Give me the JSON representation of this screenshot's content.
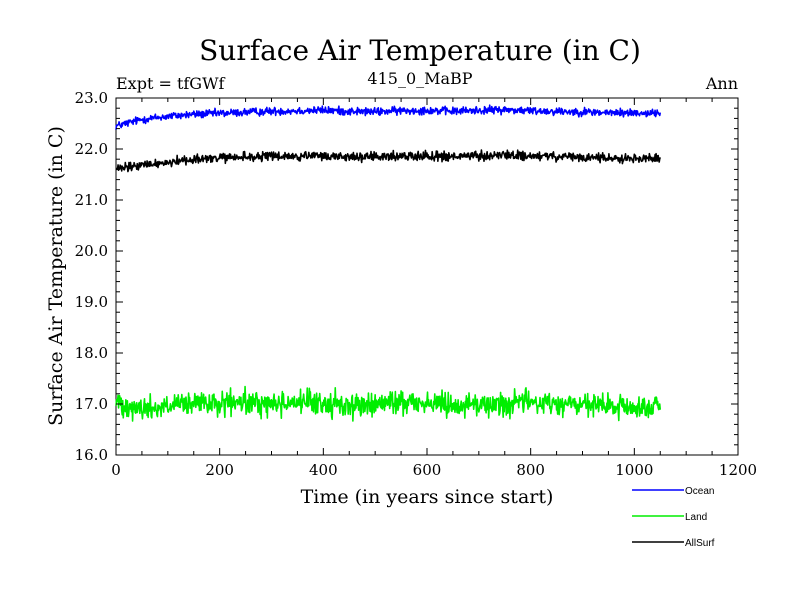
{
  "chart_data": {
    "type": "line",
    "title": "Surface Air Temperature (in C)",
    "subtitle_left": "Expt = tfGWf",
    "subtitle_center": "415_0_MaBP",
    "subtitle_right": "Ann",
    "xlabel": "Time (in years since start)",
    "ylabel": "Surface Air Temperature (in C)",
    "xlim": [
      0,
      1200
    ],
    "ylim": [
      16.0,
      23.0
    ],
    "xticks": [
      0,
      200,
      400,
      600,
      800,
      1000,
      1200
    ],
    "yticks": [
      16.0,
      17.0,
      18.0,
      19.0,
      20.0,
      21.0,
      22.0,
      23.0
    ],
    "xtick_labels": [
      "0",
      "200",
      "400",
      "600",
      "800",
      "1000",
      "1200"
    ],
    "ytick_labels": [
      "16.0",
      "17.0",
      "18.0",
      "19.0",
      "20.0",
      "21.0",
      "22.0",
      "23.0"
    ],
    "grid": false,
    "legend_position": "bottom-right, outside plot",
    "series": [
      {
        "name": "Ocean",
        "color": "#0000ff",
        "x_start": 0,
        "x_end": 1050,
        "x_step": 50,
        "values": [
          22.45,
          22.58,
          22.64,
          22.68,
          22.7,
          22.72,
          22.74,
          22.75,
          22.76,
          22.74,
          22.73,
          22.75,
          22.76,
          22.74,
          22.76,
          22.77,
          22.75,
          22.74,
          22.73,
          22.71,
          22.71,
          22.7
        ],
        "noise": 0.06
      },
      {
        "name": "Land",
        "color": "#00ee00",
        "x_start": 0,
        "x_end": 1050,
        "x_step": 50,
        "values": [
          17.05,
          16.9,
          16.95,
          17.0,
          17.0,
          17.02,
          17.0,
          17.05,
          17.0,
          16.98,
          16.98,
          17.05,
          17.02,
          17.0,
          16.98,
          17.0,
          17.05,
          17.0,
          16.98,
          16.95,
          16.92,
          16.95
        ],
        "noise": 0.18
      },
      {
        "name": "AllSurf",
        "color": "#000000",
        "x_start": 0,
        "x_end": 1050,
        "x_step": 50,
        "values": [
          21.6,
          21.68,
          21.74,
          21.8,
          21.82,
          21.84,
          21.86,
          21.85,
          21.86,
          21.85,
          21.84,
          21.86,
          21.87,
          21.85,
          21.86,
          21.88,
          21.86,
          21.85,
          21.83,
          21.82,
          21.82,
          21.81
        ],
        "noise": 0.07
      }
    ]
  }
}
